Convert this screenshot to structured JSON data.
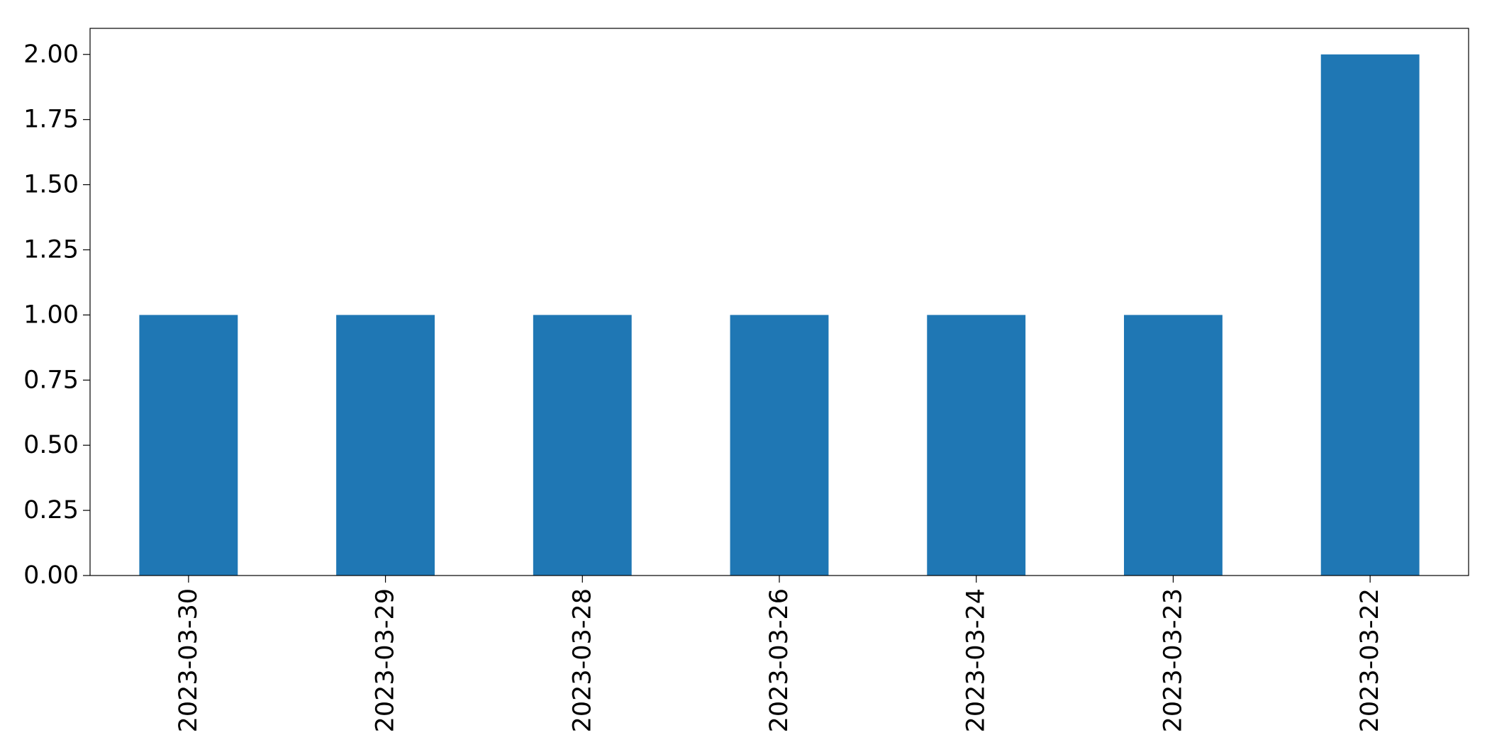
{
  "chart_data": {
    "type": "bar",
    "categories": [
      "2023-03-30",
      "2023-03-29",
      "2023-03-28",
      "2023-03-26",
      "2023-03-24",
      "2023-03-23",
      "2023-03-22"
    ],
    "values": [
      1,
      1,
      1,
      1,
      1,
      1,
      2
    ],
    "yticks": [
      "0.00",
      "0.25",
      "0.50",
      "0.75",
      "1.00",
      "1.25",
      "1.50",
      "1.75",
      "2.00"
    ],
    "ylim": [
      0,
      2.1
    ],
    "title": "",
    "xlabel": "",
    "ylabel": "",
    "grid": false,
    "bar_color": "#1f77b4"
  }
}
